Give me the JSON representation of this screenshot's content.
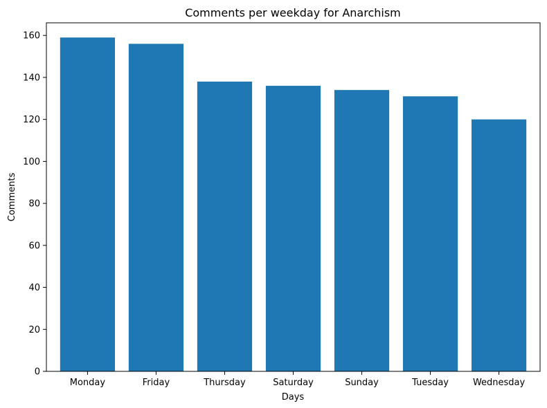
{
  "chart_data": {
    "type": "bar",
    "title": "Comments per weekday for Anarchism",
    "xlabel": "Days",
    "ylabel": "Comments",
    "categories": [
      "Monday",
      "Friday",
      "Thursday",
      "Saturday",
      "Sunday",
      "Tuesday",
      "Wednesday"
    ],
    "values": [
      159,
      156,
      138,
      136,
      134,
      131,
      120
    ],
    "ylim": [
      0,
      166
    ],
    "yticks": [
      0,
      20,
      40,
      60,
      80,
      100,
      120,
      140,
      160
    ],
    "grid": false,
    "legend": "none",
    "bar_color": "#1f77b4"
  }
}
